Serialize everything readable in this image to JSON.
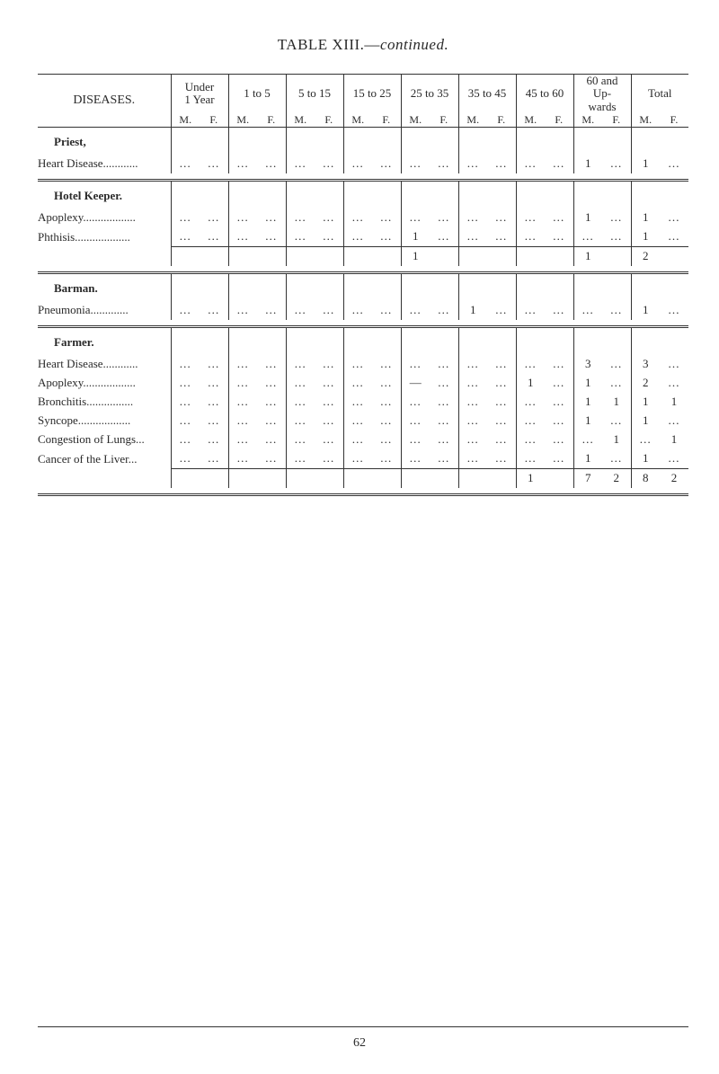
{
  "title_prefix": "TABLE  XIII.—",
  "title_suffix": "continued.",
  "page_number": "62",
  "header": {
    "diseases": "DISEASES.",
    "ranges": [
      "Under\n1 Year",
      "1 to 5",
      "5 to 15",
      "15 to 25",
      "25 to 35",
      "35 to 45",
      "45 to 60",
      "60 and\nUp-\nwards",
      "Total"
    ],
    "m": "M.",
    "f": "F."
  },
  "dots": "...",
  "dash": "—",
  "sections": [
    {
      "name": "Priest,",
      "rows": [
        {
          "label": "Heart Disease",
          "leaders": "............",
          "cells": [
            "...",
            "...",
            "...",
            "...",
            "...",
            "...",
            "...",
            "...",
            "...",
            "...",
            "...",
            "...",
            "...",
            "...",
            "1",
            "...",
            "1",
            "..."
          ]
        }
      ]
    },
    {
      "name": "Hotel Keeper.",
      "rows": [
        {
          "label": "Apoplexy",
          "leaders": "..................",
          "cells": [
            "...",
            "...",
            "...",
            "...",
            "...",
            "...",
            "...",
            "...",
            "...",
            "...",
            "...",
            "...",
            "...",
            "...",
            "1",
            "...",
            "1",
            "..."
          ]
        },
        {
          "label": "Phthisis",
          "leaders": "...................",
          "cells": [
            "...",
            "...",
            "...",
            "...",
            "...",
            "...",
            "...",
            "...",
            "1",
            "...",
            "...",
            "...",
            "...",
            "...",
            "...",
            "...",
            "1",
            "..."
          ]
        }
      ],
      "subtotal": [
        "",
        "",
        "",
        "",
        "",
        "",
        "",
        "",
        "1",
        "",
        "",
        "",
        "",
        "",
        "1",
        "",
        "2",
        ""
      ]
    },
    {
      "name": "Barman.",
      "rows": [
        {
          "label": "Pneumonia",
          "leaders": ".............",
          "cells": [
            "...",
            "...",
            "...",
            "...",
            "...",
            "...",
            "...",
            "...",
            "...",
            "...",
            "1",
            "...",
            "...",
            "...",
            "...",
            "...",
            "1",
            "..."
          ]
        }
      ]
    },
    {
      "name": "Farmer.",
      "rows": [
        {
          "label": "Heart Disease",
          "leaders": "............",
          "cells": [
            "...",
            "...",
            "...",
            "...",
            "...",
            "...",
            "...",
            "...",
            "...",
            "...",
            "...",
            "...",
            "...",
            "...",
            "3",
            "...",
            "3",
            "..."
          ]
        },
        {
          "label": "Apoplexy",
          "leaders": "..................",
          "cells": [
            "...",
            "...",
            "...",
            "...",
            "...",
            "...",
            "...",
            "...",
            "—",
            "...",
            "...",
            "...",
            "1",
            "...",
            "1",
            "...",
            "2",
            "..."
          ]
        },
        {
          "label": "Bronchitis",
          "leaders": "................",
          "cells": [
            "...",
            "...",
            "...",
            "...",
            "...",
            "...",
            "...",
            "...",
            "...",
            "...",
            "...",
            "...",
            "...",
            "...",
            "1",
            "1",
            "1",
            "1"
          ]
        },
        {
          "label": "Syncope",
          "leaders": "..................",
          "cells": [
            "...",
            "...",
            "...",
            "...",
            "...",
            "...",
            "...",
            "...",
            "...",
            "...",
            "...",
            "...",
            "...",
            "...",
            "1",
            "...",
            "1",
            "..."
          ]
        },
        {
          "label": "Congestion of Lungs",
          "leaders": "...",
          "cells": [
            "...",
            "...",
            "...",
            "...",
            "...",
            "...",
            "...",
            "...",
            "...",
            "...",
            "...",
            "...",
            "...",
            "...",
            "...",
            "1",
            "...",
            "1"
          ]
        },
        {
          "label": "Cancer of the Liver",
          "leaders": "...",
          "cells": [
            "...",
            "...",
            "...",
            "...",
            "...",
            "...",
            "...",
            "...",
            "...",
            "...",
            "...",
            "...",
            "...",
            "...",
            "1",
            "...",
            "1",
            "..."
          ]
        }
      ],
      "subtotal": [
        "",
        "",
        "",
        "",
        "",
        "",
        "",
        "",
        "",
        "",
        "",
        "",
        "1",
        "",
        "7",
        "2",
        "8",
        "2"
      ]
    }
  ]
}
